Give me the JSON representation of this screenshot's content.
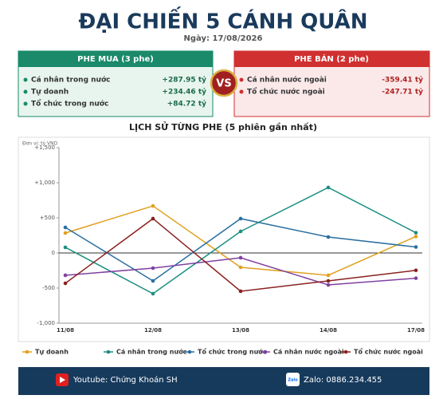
{
  "header": {
    "title": "ĐẠI CHIẾN 5 CÁNH QUÂN",
    "date": "Ngày: 17/08/2026"
  },
  "buy_panel": {
    "title": "PHE MUA  (3 phe)",
    "items": [
      {
        "label": "Cá nhân trong nước",
        "amount": "+287.95 tỷ"
      },
      {
        "label": "Tự doanh",
        "amount": "+234.46 tỷ"
      },
      {
        "label": "Tổ chức trong nước",
        "amount": "+84.72 tỷ"
      }
    ]
  },
  "vs": "VS",
  "sell_panel": {
    "title": "PHE BÁN  (2 phe)",
    "items": [
      {
        "label": "Cá nhân nước ngoài",
        "amount": "-359.41 tỷ"
      },
      {
        "label": "Tổ chức nước ngoài",
        "amount": "-247.71 tỷ"
      }
    ]
  },
  "chart_data": {
    "type": "line",
    "title": "LỊCH SỬ TỪNG PHE (5 phiên gần nhất)",
    "unit_label": "Đơn vị: tỷ VND",
    "categories": [
      "11/08",
      "12/08",
      "13/08",
      "14/08",
      "17/08"
    ],
    "ylim": [
      -1000,
      1500
    ],
    "yticks": [
      {
        "value": -1000,
        "label": "-1,000"
      },
      -500,
      0,
      {
        "value": 500,
        "label": "+500"
      },
      {
        "value": 1000,
        "label": "+1,000"
      },
      {
        "value": 1500,
        "label": "+1,500"
      }
    ],
    "grid": false,
    "series": [
      {
        "name": "Tự doanh",
        "color": "#e0a020",
        "values": [
          284,
          670,
          -205,
          -318,
          234.46
        ]
      },
      {
        "name": "Cá nhân trong nước",
        "color": "#1a9080",
        "values": [
          80,
          -580,
          307,
          932,
          287.95
        ]
      },
      {
        "name": "Tổ chức trong nước",
        "color": "#2a6fa0",
        "values": [
          364,
          -398,
          489,
          227,
          84.72
        ]
      },
      {
        "name": "Cá nhân nước ngoài",
        "color": "#8040a0",
        "values": [
          -318,
          -216,
          -68,
          -455,
          -359.41
        ]
      },
      {
        "name": "Tổ chức nước ngoài",
        "color": "#8b2020",
        "values": [
          -432,
          489,
          -545,
          -398,
          -247.71
        ]
      }
    ]
  },
  "footer": {
    "youtube": "Youtube: Chứng Khoán SH",
    "zalo_icon": "Zalo",
    "zalo": "Zalo: 0886.234.455"
  }
}
